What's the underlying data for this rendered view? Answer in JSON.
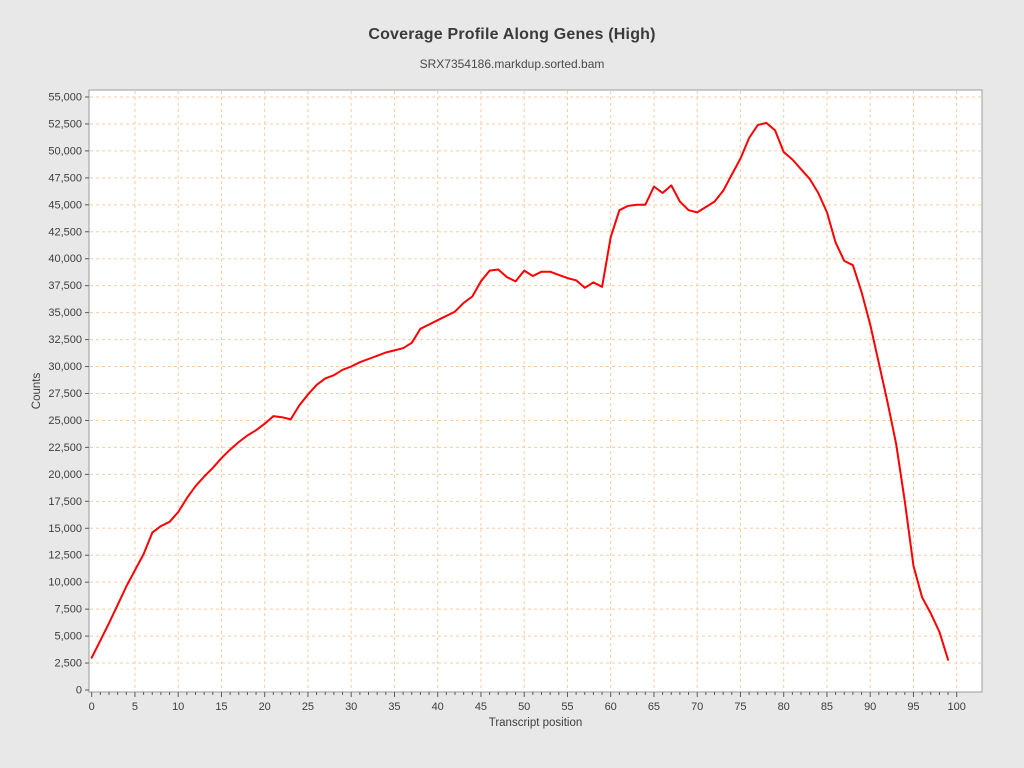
{
  "page": {
    "background": "#e8e8e8",
    "plot_background": "#ffffff",
    "frame_color": "#9b9b9b",
    "tick_color": "#5a5a5a",
    "label_color": "#3d3d3d"
  },
  "chart_data": {
    "type": "line",
    "title": "Coverage Profile Along Genes (High)",
    "subtitle": "SRX7354186.markdup.sorted.bam",
    "xlabel": "Transcript position",
    "ylabel": "Counts",
    "xlim": [
      0,
      100
    ],
    "ylim": [
      0,
      55000
    ],
    "x_major_tick_step": 5,
    "x_minor_tick_step": 1,
    "y_tick_step": 2500,
    "grid": true,
    "grid_style": "dashed",
    "grid_color": "#f9cda0",
    "line_color": "#fe0000",
    "legend": "none",
    "series_name": "SRX7354186.markdup.sorted.bam coverage",
    "x": [
      0,
      1,
      2,
      3,
      4,
      5,
      6,
      7,
      8,
      9,
      10,
      11,
      12,
      13,
      14,
      15,
      16,
      17,
      18,
      19,
      20,
      21,
      22,
      23,
      24,
      25,
      26,
      27,
      28,
      29,
      30,
      31,
      32,
      33,
      34,
      35,
      36,
      37,
      38,
      39,
      40,
      41,
      42,
      43,
      44,
      45,
      46,
      47,
      48,
      49,
      50,
      51,
      52,
      53,
      54,
      55,
      56,
      57,
      58,
      59,
      60,
      61,
      62,
      63,
      64,
      65,
      66,
      67,
      68,
      69,
      70,
      71,
      72,
      73,
      74,
      75,
      76,
      77,
      78,
      79,
      80,
      81,
      82,
      83,
      84,
      85,
      86,
      87,
      88,
      89,
      90,
      91,
      92,
      93,
      94,
      95,
      96,
      97,
      98,
      99
    ],
    "y": [
      3000,
      4600,
      6200,
      7900,
      9600,
      11100,
      12600,
      14600,
      15200,
      15600,
      16500,
      17800,
      18900,
      19800,
      20600,
      21500,
      22300,
      23000,
      23600,
      24100,
      24700,
      25400,
      25300,
      25100,
      26400,
      27400,
      28300,
      28900,
      29200,
      29700,
      30000,
      30400,
      30700,
      31000,
      31300,
      31500,
      31700,
      32200,
      33500,
      33900,
      34300,
      34700,
      35100,
      35900,
      36500,
      37900,
      38900,
      39000,
      38300,
      37900,
      38900,
      38400,
      38800,
      38800,
      38500,
      38200,
      38000,
      37300,
      37800,
      37400,
      42000,
      44500,
      44900,
      45000,
      45000,
      46700,
      46100,
      46800,
      45300,
      44500,
      44300,
      44800,
      45300,
      46300,
      47800,
      49300,
      51200,
      52400,
      52600,
      51900,
      49900,
      49200,
      48300,
      47400,
      46100,
      44300,
      41500,
      39800,
      39400,
      36900,
      33900,
      30300,
      26700,
      22800,
      17500,
      11500,
      8600,
      7100,
      5400,
      2800
    ]
  }
}
